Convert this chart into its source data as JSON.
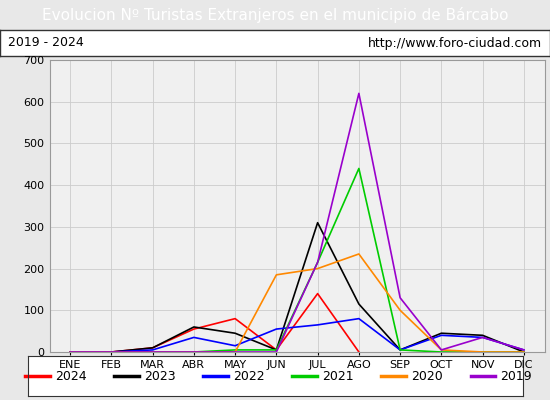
{
  "title": "Evolucion Nº Turistas Extranjeros en el municipio de Bárcabo",
  "subtitle_left": "2019 - 2024",
  "subtitle_right": "http://www.foro-ciudad.com",
  "months": [
    "ENE",
    "FEB",
    "MAR",
    "ABR",
    "MAY",
    "JUN",
    "JUL",
    "AGO",
    "SEP",
    "OCT",
    "NOV",
    "DIC"
  ],
  "ylim": [
    0,
    700
  ],
  "yticks": [
    0,
    100,
    200,
    300,
    400,
    500,
    600,
    700
  ],
  "series": {
    "2024": {
      "color": "#ff0000",
      "data": [
        0,
        0,
        10,
        55,
        80,
        5,
        140,
        0,
        null,
        null,
        null,
        null
      ]
    },
    "2023": {
      "color": "#000000",
      "data": [
        0,
        0,
        10,
        60,
        45,
        5,
        310,
        115,
        5,
        45,
        40,
        0
      ]
    },
    "2022": {
      "color": "#0000ff",
      "data": [
        0,
        0,
        5,
        35,
        15,
        55,
        65,
        80,
        5,
        40,
        35,
        5
      ]
    },
    "2021": {
      "color": "#00cc00",
      "data": [
        0,
        0,
        0,
        0,
        5,
        5,
        215,
        440,
        5,
        0,
        0,
        0
      ]
    },
    "2020": {
      "color": "#ff8800",
      "data": [
        0,
        0,
        0,
        0,
        0,
        185,
        200,
        235,
        100,
        5,
        0,
        0
      ]
    },
    "2019": {
      "color": "#9900cc",
      "data": [
        0,
        0,
        0,
        0,
        0,
        0,
        215,
        620,
        130,
        5,
        35,
        5
      ]
    }
  },
  "background_color": "#e8e8e8",
  "plot_bg_color": "#f0f0f0",
  "title_bg_color": "#5599dd",
  "title_color": "#ffffff",
  "title_fontsize": 11,
  "subtitle_fontsize": 9,
  "axis_fontsize": 8,
  "legend_fontsize": 9,
  "legend_order": [
    "2024",
    "2023",
    "2022",
    "2021",
    "2020",
    "2019"
  ]
}
